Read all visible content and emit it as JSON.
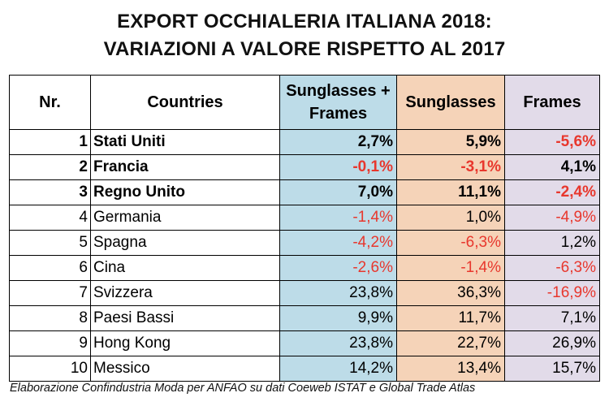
{
  "title": {
    "line1": "EXPORT OCCHIALERIA ITALIANA 2018:",
    "line2": "VARIAZIONI A VALORE RISPETTO AL 2017"
  },
  "colors": {
    "sunglasses_frames_column": "#bddce8",
    "sunglasses_column": "#f5d3b8",
    "frames_column": "#e2dbe9",
    "negative_value": "#e8372d"
  },
  "chart_data": {
    "type": "table",
    "columns": [
      "Nr.",
      "Countries",
      "Sunglasses + Frames",
      "Sunglasses",
      "Frames"
    ],
    "rows": [
      {
        "nr": "1",
        "country": "Stati Uniti",
        "sunglasses_frames": "2,7%",
        "sunglasses": "5,9%",
        "frames": "-5,6%",
        "bold": true
      },
      {
        "nr": "2",
        "country": "Francia",
        "sunglasses_frames": "-0,1%",
        "sunglasses": "-3,1%",
        "frames": "4,1%",
        "bold": true
      },
      {
        "nr": "3",
        "country": "Regno Unito",
        "sunglasses_frames": "7,0%",
        "sunglasses": "11,1%",
        "frames": "-2,4%",
        "bold": true
      },
      {
        "nr": "4",
        "country": "Germania",
        "sunglasses_frames": "-1,4%",
        "sunglasses": "1,0%",
        "frames": "-4,9%",
        "bold": false
      },
      {
        "nr": "5",
        "country": "Spagna",
        "sunglasses_frames": "-4,2%",
        "sunglasses": "-6,3%",
        "frames": "1,2%",
        "bold": false
      },
      {
        "nr": "6",
        "country": "Cina",
        "sunglasses_frames": "-2,6%",
        "sunglasses": "-1,4%",
        "frames": "-6,3%",
        "bold": false
      },
      {
        "nr": "7",
        "country": "Svizzera",
        "sunglasses_frames": "23,8%",
        "sunglasses": "36,3%",
        "frames": "-16,9%",
        "bold": false
      },
      {
        "nr": "8",
        "country": "Paesi Bassi",
        "sunglasses_frames": "9,9%",
        "sunglasses": "11,7%",
        "frames": "7,1%",
        "bold": false
      },
      {
        "nr": "9",
        "country": "Hong Kong",
        "sunglasses_frames": "23,8%",
        "sunglasses": "22,7%",
        "frames": "26,9%",
        "bold": false
      },
      {
        "nr": "10",
        "country": "Messico",
        "sunglasses_frames": "14,2%",
        "sunglasses": "13,4%",
        "frames": "15,7%",
        "bold": false
      }
    ]
  },
  "source_note": "Elaborazione Confindustria Moda per ANFAO su dati Coeweb ISTAT e Global Trade Atlas"
}
